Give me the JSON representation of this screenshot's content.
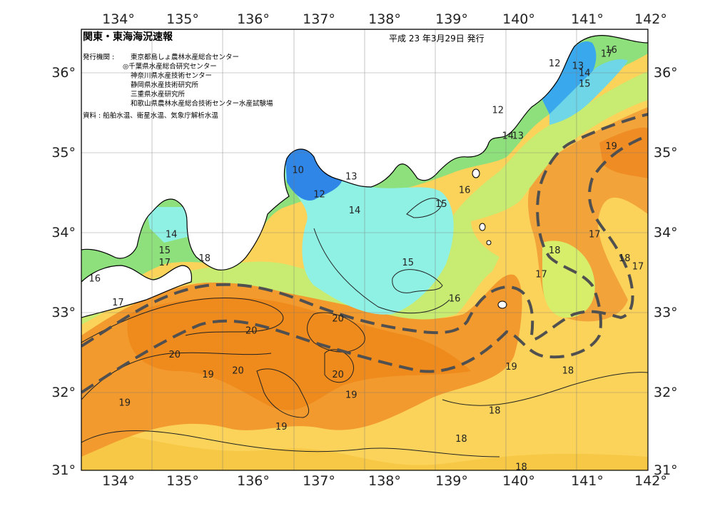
{
  "header": {
    "title": "関東・東海海況速報",
    "date": "平成 23 年3月29日 発行",
    "publisher_label": "発行機関 :",
    "publishers": [
      "東京都島しょ農林水産総合センター",
      "◎千葉県水産総合研究センター",
      "神奈川県水産技術センター",
      "静岡県水産技術研究所",
      "三重県水産研究所",
      "和歌山県農林水産総合技術センター水産試験場"
    ],
    "sources": "資料 : 船舶水温、衛星水温、気象庁解析水温"
  },
  "axes": {
    "lon_labels": [
      "134°",
      "135°",
      "136°",
      "137°",
      "138°",
      "139°",
      "140°",
      "141°",
      "142°"
    ],
    "lat_labels": [
      "36°",
      "35°",
      "34°",
      "33°",
      "32°",
      "31°"
    ]
  },
  "isotherm_labels": [
    {
      "text": "10",
      "lon": 136.75,
      "lat": 34.75
    },
    {
      "text": "12",
      "lon": 137.07,
      "lat": 34.45
    },
    {
      "text": "13",
      "lon": 137.55,
      "lat": 34.67
    },
    {
      "text": "14",
      "lon": 137.6,
      "lat": 34.25
    },
    {
      "text": "15",
      "lon": 138.4,
      "lat": 33.6
    },
    {
      "text": "15",
      "lon": 138.9,
      "lat": 34.33
    },
    {
      "text": "16",
      "lon": 139.25,
      "lat": 34.5
    },
    {
      "text": "16",
      "lon": 139.1,
      "lat": 33.15
    },
    {
      "text": "12",
      "lon": 139.75,
      "lat": 35.5
    },
    {
      "text": "14",
      "lon": 139.9,
      "lat": 35.18
    },
    {
      "text": "13",
      "lon": 140.05,
      "lat": 35.18
    },
    {
      "text": "12",
      "lon": 140.6,
      "lat": 36.08
    },
    {
      "text": "13",
      "lon": 140.95,
      "lat": 36.05
    },
    {
      "text": "14",
      "lon": 141.05,
      "lat": 35.96
    },
    {
      "text": "15",
      "lon": 141.05,
      "lat": 35.83
    },
    {
      "text": "16",
      "lon": 141.45,
      "lat": 36.25
    },
    {
      "text": "17",
      "lon": 141.38,
      "lat": 36.2
    },
    {
      "text": "19",
      "lon": 141.45,
      "lat": 35.05
    },
    {
      "text": "17",
      "lon": 141.2,
      "lat": 33.95
    },
    {
      "text": "18",
      "lon": 140.6,
      "lat": 33.75
    },
    {
      "text": "17",
      "lon": 140.4,
      "lat": 33.45
    },
    {
      "text": "18",
      "lon": 141.65,
      "lat": 33.65
    },
    {
      "text": "17",
      "lon": 141.85,
      "lat": 33.55
    },
    {
      "text": "14",
      "lon": 134.85,
      "lat": 33.95
    },
    {
      "text": "15",
      "lon": 134.75,
      "lat": 33.75
    },
    {
      "text": "17",
      "lon": 134.75,
      "lat": 33.6
    },
    {
      "text": "18",
      "lon": 135.35,
      "lat": 33.65
    },
    {
      "text": "16",
      "lon": 133.7,
      "lat": 33.4
    },
    {
      "text": "17",
      "lon": 134.05,
      "lat": 33.1
    },
    {
      "text": "20",
      "lon": 136.05,
      "lat": 32.75
    },
    {
      "text": "20",
      "lon": 137.35,
      "lat": 32.9
    },
    {
      "text": "20",
      "lon": 134.9,
      "lat": 32.45
    },
    {
      "text": "20",
      "lon": 135.85,
      "lat": 32.25
    },
    {
      "text": "20",
      "lon": 137.35,
      "lat": 32.2
    },
    {
      "text": "19",
      "lon": 135.4,
      "lat": 32.2
    },
    {
      "text": "19",
      "lon": 137.55,
      "lat": 31.95
    },
    {
      "text": "19",
      "lon": 134.15,
      "lat": 31.85
    },
    {
      "text": "19",
      "lon": 136.5,
      "lat": 31.55
    },
    {
      "text": "19",
      "lon": 139.95,
      "lat": 32.3
    },
    {
      "text": "18",
      "lon": 140.8,
      "lat": 32.25
    },
    {
      "text": "18",
      "lon": 139.7,
      "lat": 31.75
    },
    {
      "text": "18",
      "lon": 139.2,
      "lat": 31.4
    },
    {
      "text": "18",
      "lon": 140.1,
      "lat": 31.05
    }
  ],
  "colors": {
    "water_cold": "#2f86e6",
    "water_cool": "#8ff0ea",
    "water_mild": "#7fe08a",
    "water_warm": "#fbd35a",
    "water_hot": "#f08a1e",
    "kuroshio_line": "#505050"
  }
}
